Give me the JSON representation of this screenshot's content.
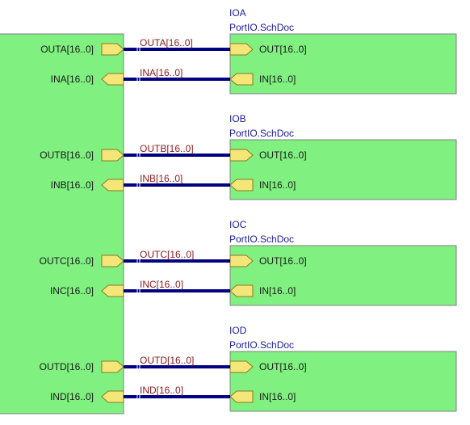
{
  "parent_ports": [
    {
      "out": "OUTA[16..0]",
      "in": "INA[16..0]"
    },
    {
      "out": "OUTB[16..0]",
      "in": "INB[16..0]"
    },
    {
      "out": "OUTC[16..0]",
      "in": "INC[16..0]"
    },
    {
      "out": "OUTD[16..0]",
      "in": "IND[16..0]"
    }
  ],
  "sheets": [
    {
      "designator": "IOA",
      "filename": "PortIO.SchDoc",
      "out_port": "OUT[16..0]",
      "in_port": "IN[16..0]",
      "net_out": "OUTA[16..0]",
      "net_in": "INA[16..0]"
    },
    {
      "designator": "IOB",
      "filename": "PortIO.SchDoc",
      "out_port": "OUT[16..0]",
      "in_port": "IN[16..0]",
      "net_out": "OUTB[16..0]",
      "net_in": "INB[16..0]"
    },
    {
      "designator": "IOC",
      "filename": "PortIO.SchDoc",
      "out_port": "OUT[16..0]",
      "in_port": "IN[16..0]",
      "net_out": "OUTC[16..0]",
      "net_in": "INC[16..0]"
    },
    {
      "designator": "IOD",
      "filename": "PortIO.SchDoc",
      "out_port": "OUT[16..0]",
      "in_port": "IN[16..0]",
      "net_out": "OUTD[16..0]",
      "net_in": "IND[16..0]"
    }
  ],
  "colors": {
    "sheet_fill": "#80f080",
    "sheet_border": "#808080",
    "entry_fill": "#f5e67a",
    "entry_border": "#8a7a20",
    "wire": "#000080",
    "designator": "#1a1a9c",
    "net_label": "#8b1a1a"
  }
}
